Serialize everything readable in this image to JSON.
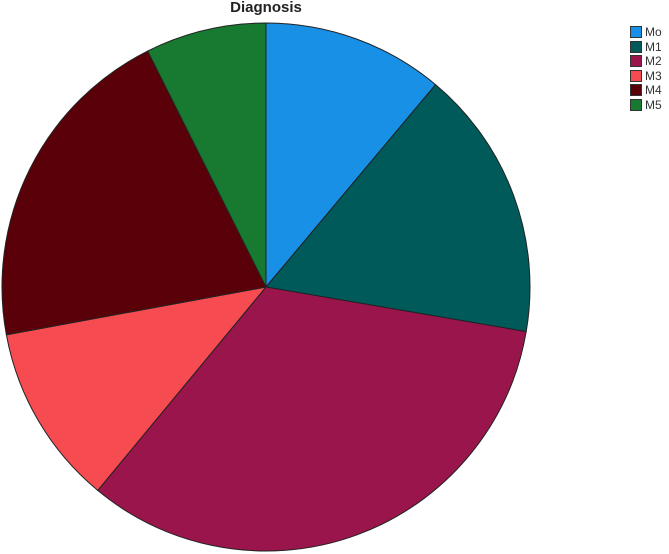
{
  "chart_data": {
    "type": "pie",
    "title": "Diagnosis",
    "start": "top",
    "direction": "clockwise",
    "legend_position": "right",
    "categories": [
      "Mo",
      "M1",
      "M2",
      "M3",
      "M4",
      "M5"
    ],
    "values": [
      11.1,
      16.6,
      33.3,
      11.1,
      20.5,
      7.4
    ],
    "colors": [
      "#1790e6",
      "#015a5a",
      "#9b154d",
      "#f64b51",
      "#5a0009",
      "#187930"
    ]
  }
}
